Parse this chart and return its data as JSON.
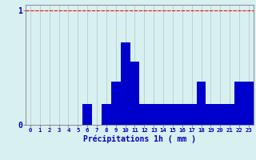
{
  "hours": [
    0,
    1,
    2,
    3,
    4,
    5,
    6,
    7,
    8,
    9,
    10,
    11,
    12,
    13,
    14,
    15,
    16,
    17,
    18,
    19,
    20,
    21,
    22,
    23
  ],
  "values": [
    0,
    0,
    0,
    0,
    0,
    0,
    0.18,
    0,
    0.18,
    0.38,
    0.72,
    0.55,
    0.18,
    0.18,
    0.18,
    0.18,
    0.18,
    0.18,
    0.38,
    0.18,
    0.18,
    0.18,
    0.38,
    0.38
  ],
  "bar_color": "#0000cc",
  "bg_color": "#d8f0f0",
  "plot_bg_color": "#d8f0f0",
  "grid_color_v": "#b8cccc",
  "grid_color_h": "#b8cccc",
  "red_line_color": "#ff0000",
  "text_color": "#0000bb",
  "axis_color": "#888899",
  "xlabel": "Précipitations 1h ( mm )",
  "ylim": [
    0,
    1.05
  ],
  "yticks": [
    0,
    1
  ],
  "ytick_labels": [
    "0",
    "1"
  ]
}
